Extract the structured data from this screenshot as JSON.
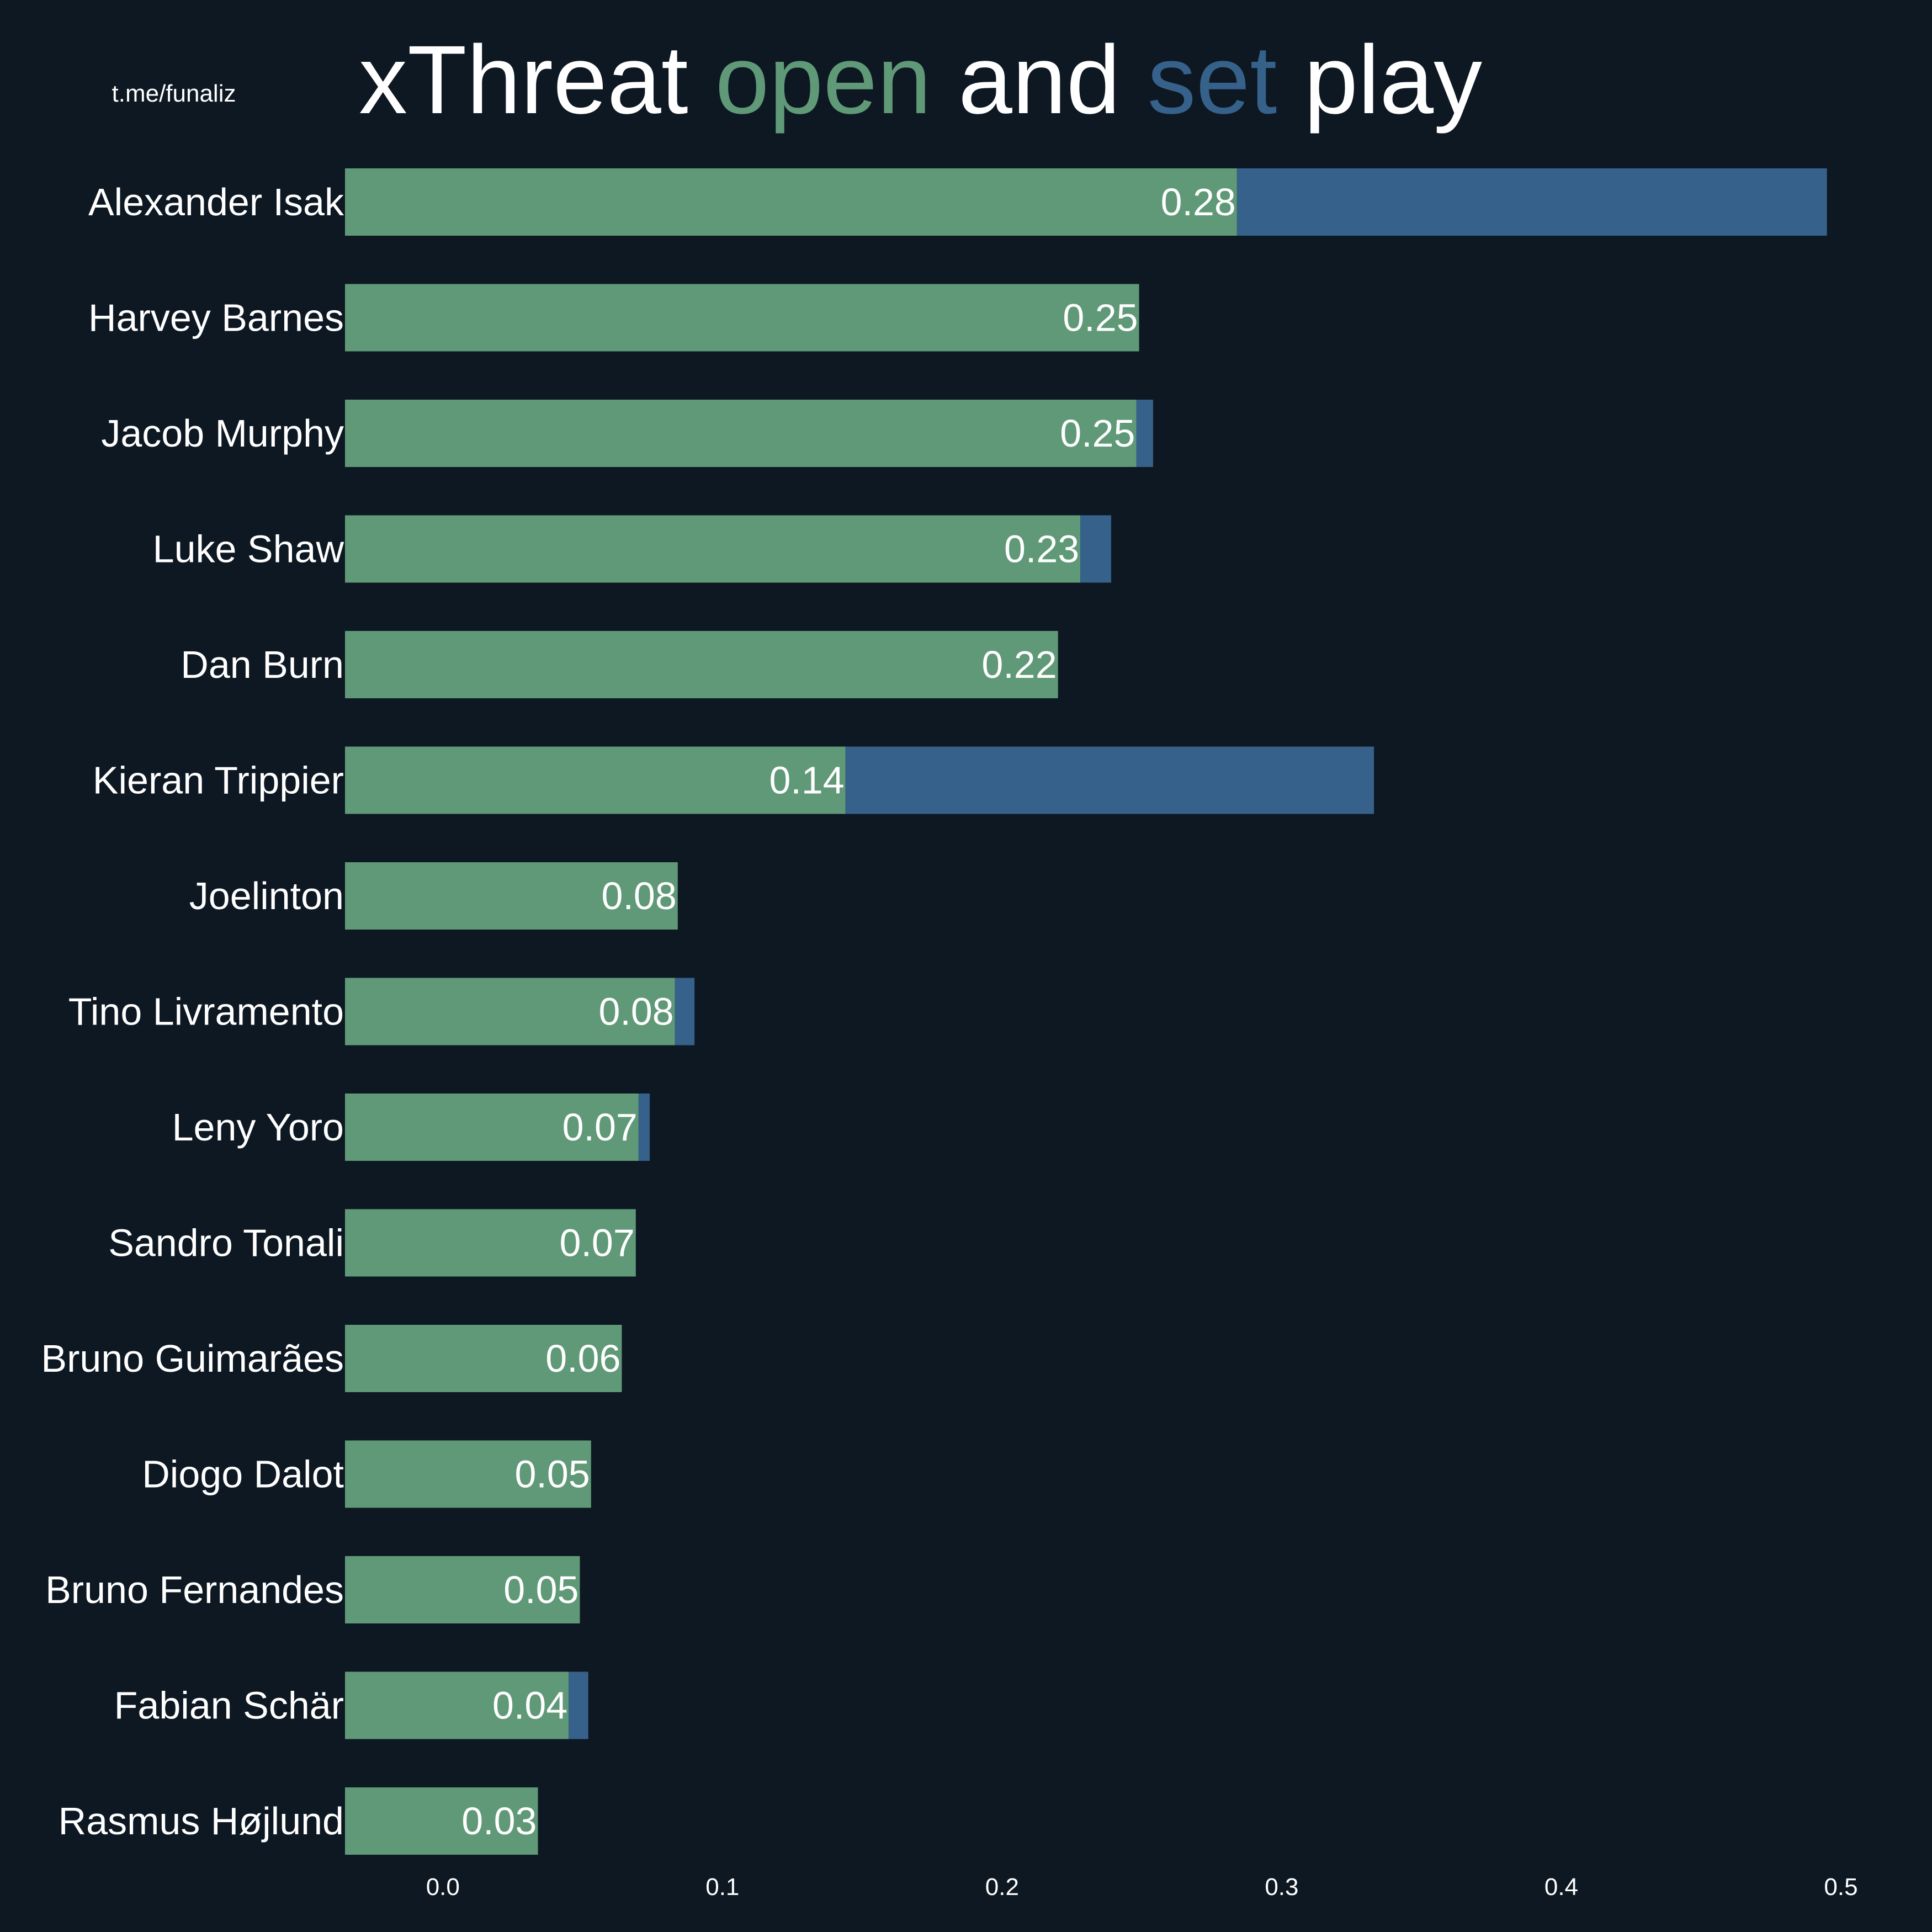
{
  "page": {
    "watermark": "t.me/funaliz",
    "title": {
      "parts": [
        {
          "text": "xThreat ",
          "role": "plain"
        },
        {
          "text": "open",
          "role": "open"
        },
        {
          "text": " and ",
          "role": "plain"
        },
        {
          "text": "set",
          "role": "set"
        },
        {
          "text": " play",
          "role": "plain"
        }
      ]
    }
  },
  "colors": {
    "background": "#0e1823",
    "open": "#5f9977",
    "set": "#36618a",
    "text": "#ffffff"
  },
  "chart_data": {
    "type": "bar",
    "orientation": "horizontal",
    "stacked": true,
    "grid": false,
    "legend": "none (encoded in title colors)",
    "xlim": [
      -0.035,
      0.5
    ],
    "x_ticks": [
      "0.0",
      "0.1",
      "0.2",
      "0.3",
      "0.4",
      "0.5"
    ],
    "x_tick_values": [
      0.0,
      0.1,
      0.2,
      0.3,
      0.4,
      0.5
    ],
    "categories": [
      "Alexander Isak",
      "Harvey Barnes",
      "Jacob Murphy",
      "Luke Shaw",
      "Dan Burn",
      "Kieran Trippier",
      "Joelinton",
      "Tino Livramento",
      "Leny Yoro",
      "Sandro Tonali",
      "Bruno Guimarães",
      "Diogo Dalot",
      "Bruno Fernandes",
      "Fabian Schär",
      "Rasmus Højlund"
    ],
    "series": [
      {
        "key": "open",
        "values": [
          0.284,
          0.249,
          0.248,
          0.228,
          0.22,
          0.144,
          0.084,
          0.083,
          0.07,
          0.069,
          0.064,
          0.053,
          0.049,
          0.045,
          0.034
        ]
      },
      {
        "key": "set",
        "values": [
          0.211,
          0.0,
          0.006,
          0.011,
          0.0,
          0.189,
          0.0,
          0.007,
          0.004,
          0.0,
          0.0,
          0.0,
          0.0,
          0.007,
          0.0
        ]
      }
    ],
    "data_labels": [
      "0.28",
      "0.25",
      "0.25",
      "0.23",
      "0.22",
      "0.14",
      "0.08",
      "0.08",
      "0.07",
      "0.07",
      "0.06",
      "0.05",
      "0.05",
      "0.04",
      "0.03"
    ]
  }
}
